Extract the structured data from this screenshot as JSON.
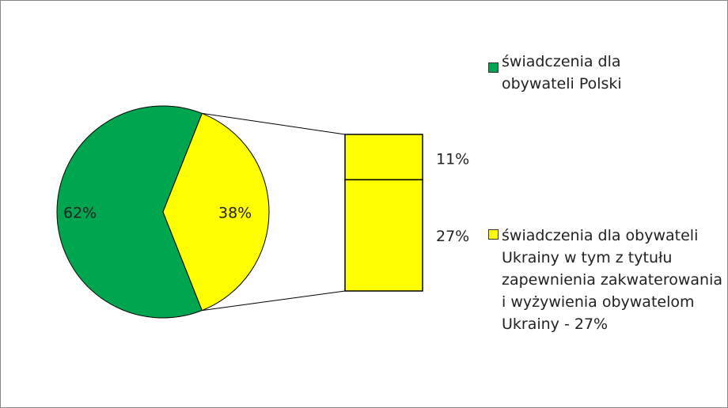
{
  "chart_data": {
    "type": "pie",
    "categories": [
      "świadczenia dla obywateli Polski",
      "świadczenia dla obywateli Ukrainy w tym z tytułu zapewnienia zakwaterowania i wyżywienia obywatelom Ukrainy - 27%"
    ],
    "values": [
      62,
      38
    ],
    "value_labels": [
      "62%",
      "38%"
    ],
    "colors": [
      "#00a54f",
      "#ffff00"
    ],
    "breakdown": {
      "values": [
        11,
        27
      ],
      "value_labels": [
        "11%",
        "27%"
      ]
    }
  }
}
